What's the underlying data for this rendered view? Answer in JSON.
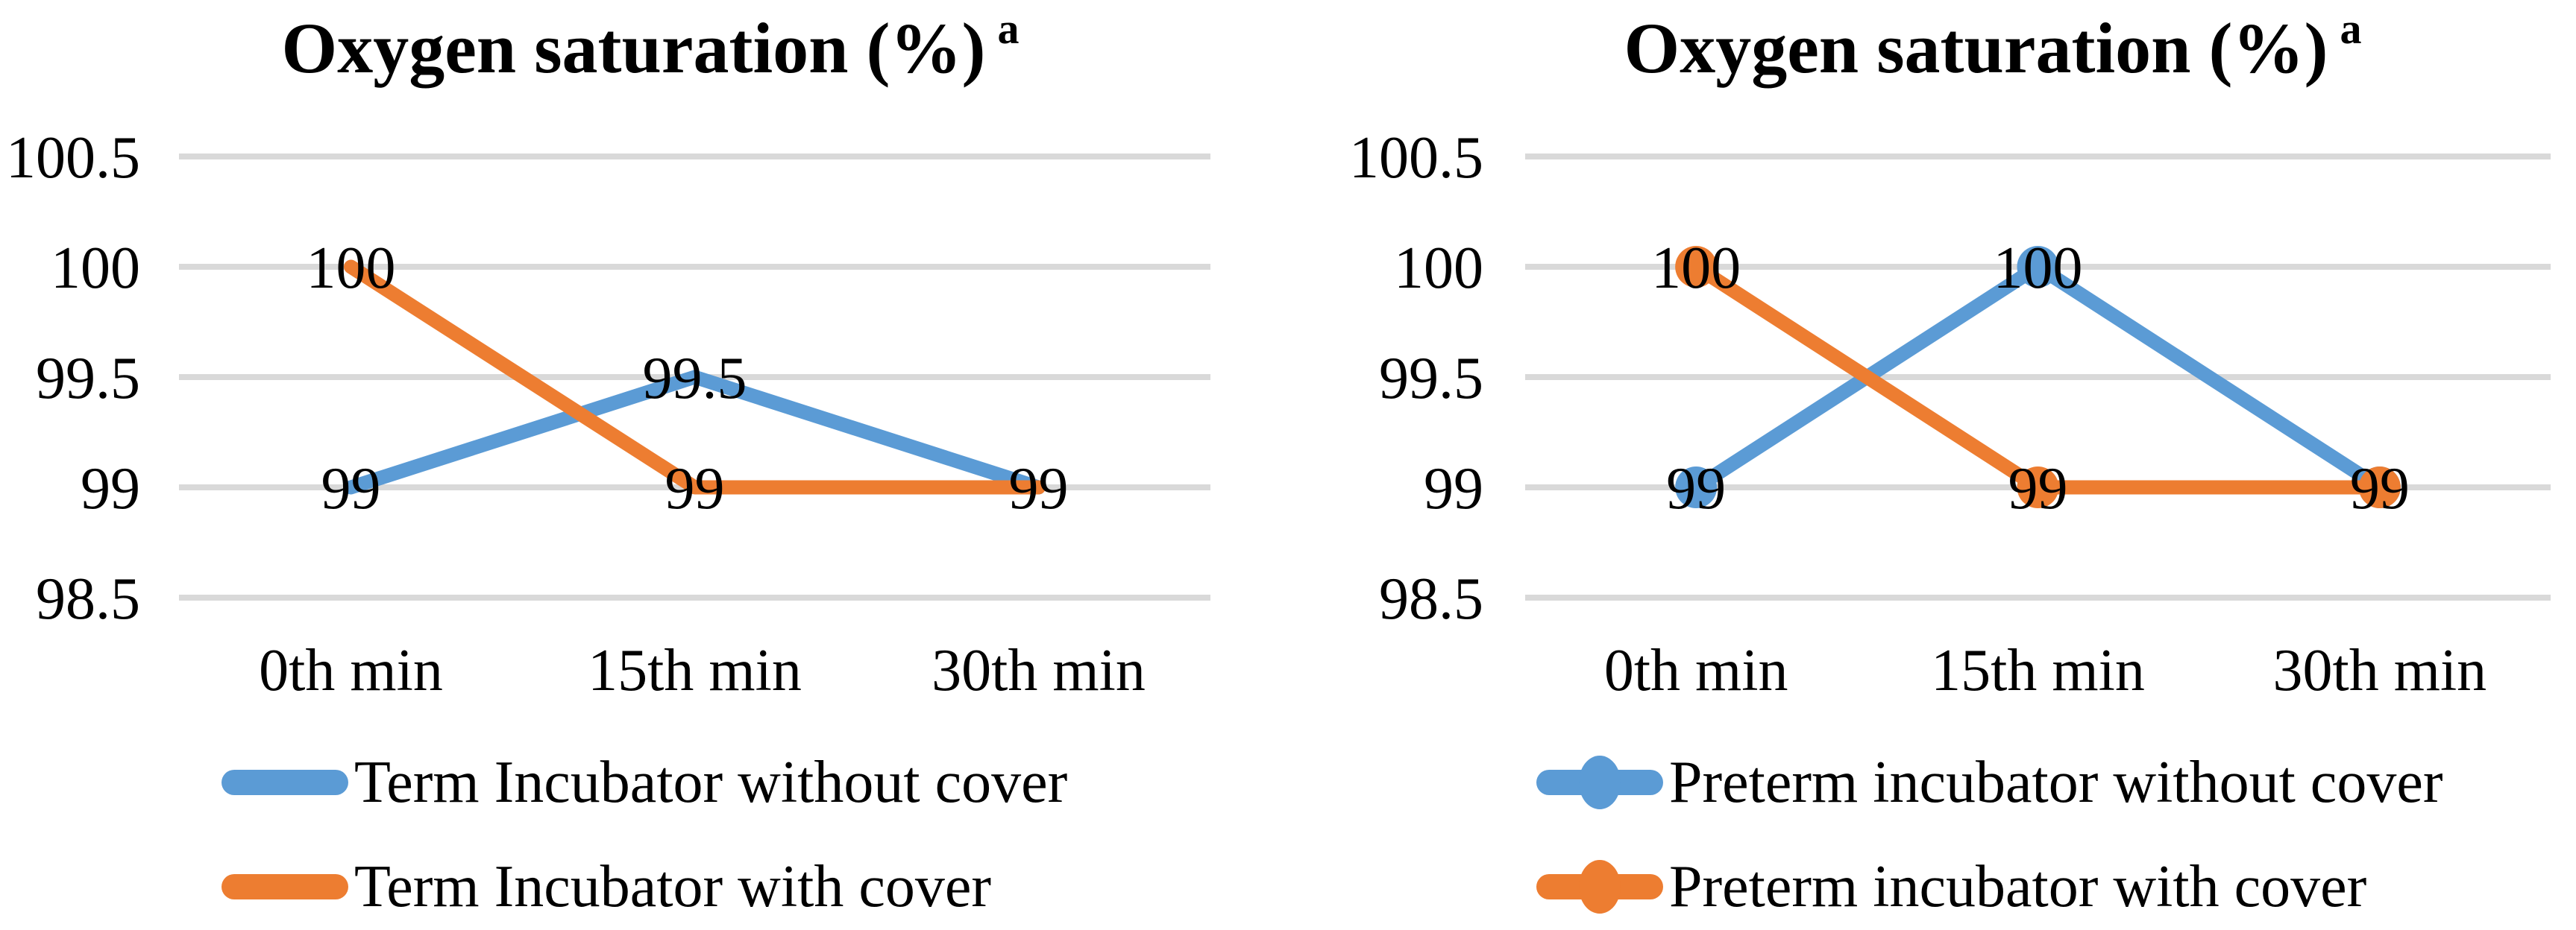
{
  "page": {
    "background": "#FFFFFF",
    "text_color": "#000000",
    "gridline_color": "#D9D9D9"
  },
  "chart_data": [
    {
      "type": "line",
      "title": "Oxygen saturation (%)",
      "title_superscript": "a",
      "categories": [
        "0th min",
        "15th min",
        "30th min"
      ],
      "y_tick_labels": [
        "100.5",
        "100",
        "99.5",
        "99",
        "98.5"
      ],
      "y_ticks": [
        100.5,
        100,
        99.5,
        99,
        98.5
      ],
      "ylim": [
        98.5,
        100.5
      ],
      "grid": "horizontal",
      "legend_position": "bottom-left",
      "series": [
        {
          "name": "Term Incubator without cover",
          "color": "#5B9BD5",
          "values": [
            99,
            99.5,
            99
          ],
          "markers": false
        },
        {
          "name": "Term Incubator with cover",
          "color": "#ED7D31",
          "values": [
            100,
            99,
            99
          ],
          "markers": false
        }
      ],
      "point_labels": [
        {
          "category_index": 0,
          "series_index": 1,
          "text": "100"
        },
        {
          "category_index": 0,
          "series_index": 0,
          "text": "99"
        },
        {
          "category_index": 1,
          "series_index": 0,
          "text": "99.5"
        },
        {
          "category_index": 1,
          "series_index": 1,
          "text": "99"
        },
        {
          "category_index": 2,
          "series_index": 1,
          "text": "99"
        }
      ]
    },
    {
      "type": "line",
      "title": "Oxygen saturation (%)",
      "title_superscript": "a",
      "categories": [
        "0th min",
        "15th min",
        "30th min"
      ],
      "y_tick_labels": [
        "100.5",
        "100",
        "99.5",
        "99",
        "98.5"
      ],
      "y_ticks": [
        100.5,
        100,
        99.5,
        99,
        98.5
      ],
      "ylim": [
        98.5,
        100.5
      ],
      "grid": "horizontal",
      "legend_position": "bottom-left",
      "series": [
        {
          "name": "Preterm incubator without cover",
          "color": "#5B9BD5",
          "values": [
            99,
            100,
            99
          ],
          "markers": true
        },
        {
          "name": "Preterm incubator with cover",
          "color": "#ED7D31",
          "values": [
            100,
            99,
            99
          ],
          "markers": true
        }
      ],
      "point_labels": [
        {
          "category_index": 0,
          "series_index": 1,
          "text": "100"
        },
        {
          "category_index": 0,
          "series_index": 0,
          "text": "99"
        },
        {
          "category_index": 1,
          "series_index": 0,
          "text": "100"
        },
        {
          "category_index": 1,
          "series_index": 1,
          "text": "99"
        },
        {
          "category_index": 2,
          "series_index": 1,
          "text": "99"
        }
      ]
    }
  ]
}
